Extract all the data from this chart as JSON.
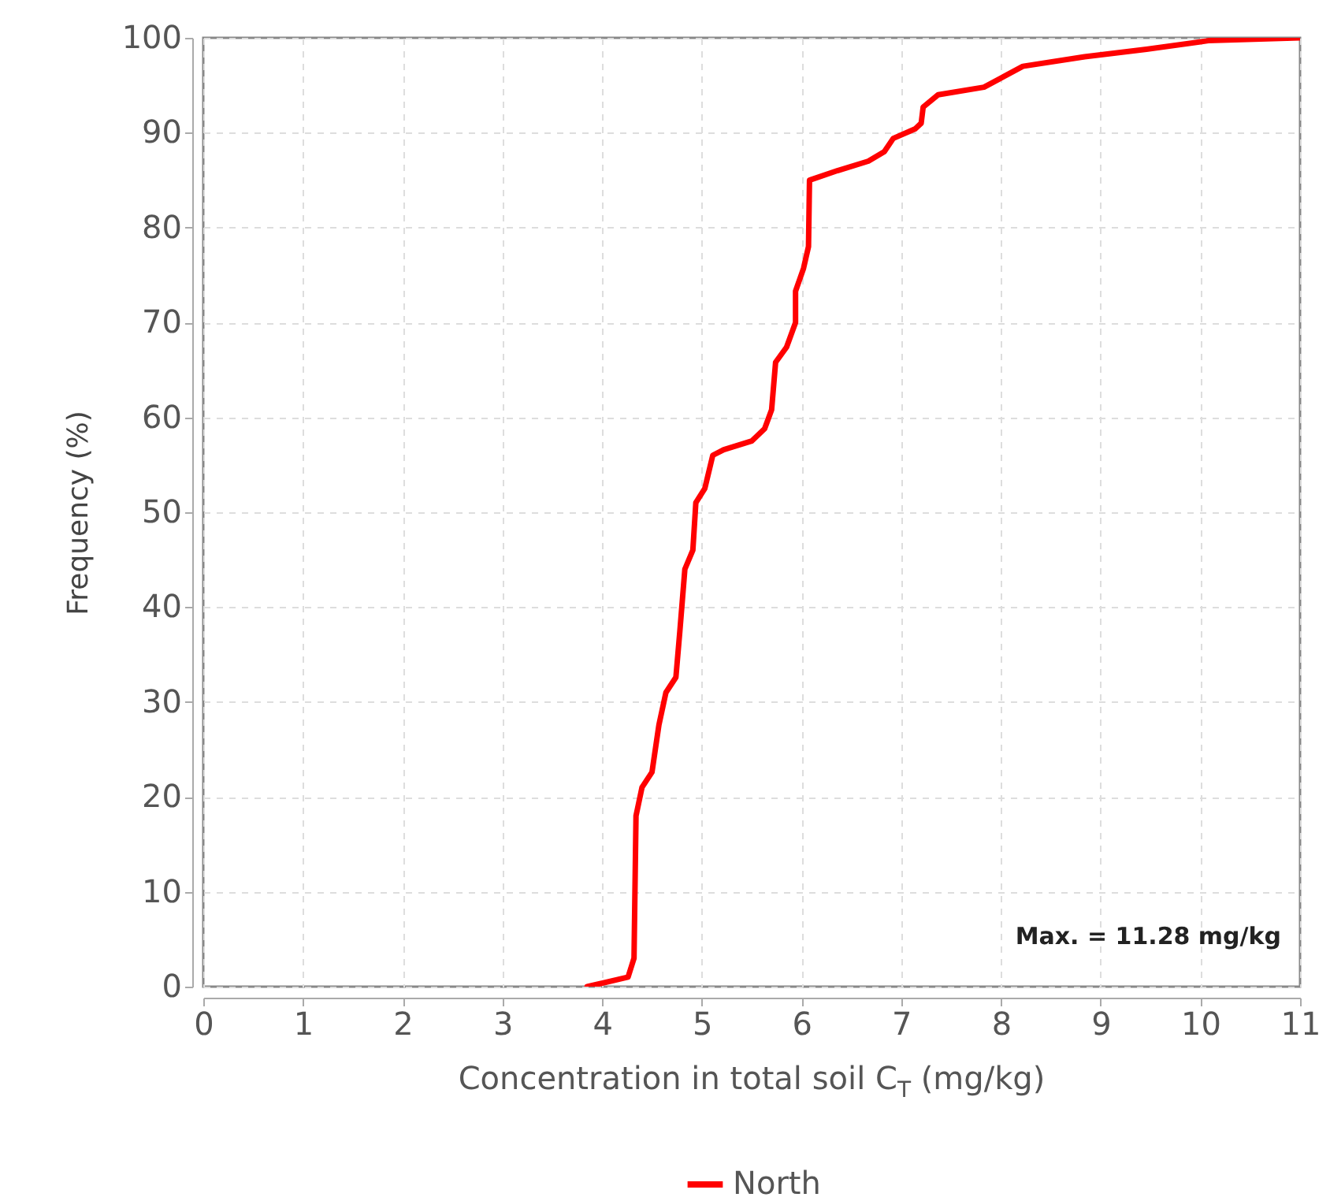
{
  "chart_data": {
    "type": "line",
    "xlabel": "Concentration in total soil C$_{T}$ (mg/kg)",
    "ylabel": "Frequency (%)",
    "annotations": [
      "Max. = 11.28 mg/kg"
    ],
    "xlim": [
      0,
      11
    ],
    "xticks": [
      0,
      1,
      2,
      3,
      4,
      5,
      6,
      7,
      8,
      9,
      10,
      11
    ],
    "ylim": [
      0,
      100
    ],
    "yticks": [
      0,
      10,
      20,
      30,
      40,
      50,
      60,
      70,
      80,
      90,
      100
    ],
    "grid": true,
    "legend": "bottom",
    "marker": "none",
    "line_style": "solid",
    "x": [
      3.85,
      4.26,
      4.32,
      4.34,
      4.4,
      4.5,
      4.57,
      4.64,
      4.74,
      4.78,
      4.83,
      4.91,
      4.94,
      5.03,
      5.11,
      5.22,
      5.5,
      5.63,
      5.7,
      5.74,
      5.85,
      5.94,
      5.94,
      6.02,
      6.07,
      6.08,
      6.36,
      6.67,
      6.83,
      6.92,
      7.14,
      7.2,
      7.22,
      7.37,
      7.83,
      8.22,
      8.84,
      9.46,
      10.08,
      11
    ],
    "series": [
      {
        "name": "North",
        "color": "#ff0000",
        "values": [
          0,
          1,
          3,
          18,
          21,
          22.6,
          27.6,
          31,
          32.6,
          37.5,
          44,
          46,
          51,
          52.5,
          56,
          56.6,
          57.5,
          58.8,
          60.8,
          65.8,
          67.4,
          70,
          73.3,
          75.7,
          78,
          85,
          86,
          87,
          88,
          89.4,
          90.4,
          91,
          92.7,
          94,
          94.8,
          97,
          98,
          98.8,
          99.7,
          100
        ]
      }
    ]
  }
}
